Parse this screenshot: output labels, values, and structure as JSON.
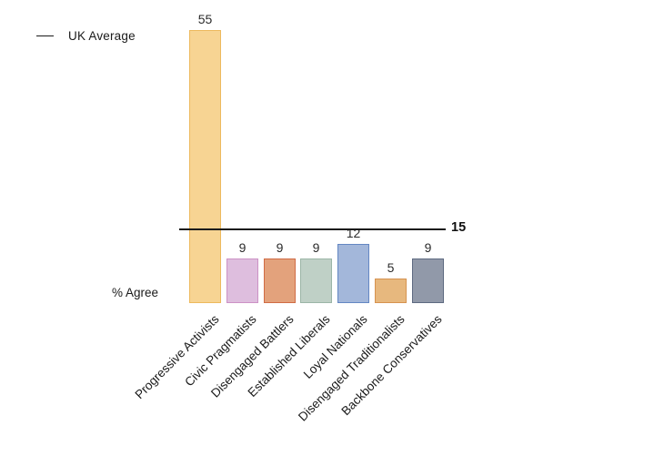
{
  "chart_data": {
    "type": "bar",
    "title": "",
    "categories": [
      "Progressive Activists",
      "Civic Pragmatists",
      "Disengaged Battlers",
      "Established Liberals",
      "Loyal Nationals",
      "Disengaged Traditionalists",
      "Backbone Conservatives"
    ],
    "values": [
      55,
      9,
      9,
      9,
      12,
      5,
      9
    ],
    "ylabel": "% Agree",
    "ylim": [
      0,
      58
    ],
    "grid": false,
    "uk_average": 15,
    "legend_label": "UK Average",
    "legend_position": "top-left",
    "bar_fill_colors": [
      "#F7D493",
      "#DEBEDE",
      "#E3A27C",
      "#BFD0C6",
      "#A3B7DA",
      "#E7B87E",
      "#9199A9"
    ],
    "bar_border_colors": [
      "#EDB95D",
      "#CC92C5",
      "#D06C45",
      "#9CB6A7",
      "#6487C3",
      "#D69350",
      "#5E6A81"
    ],
    "average_line_color": "#1a1a1a",
    "value_label_color": "#2b2b2b"
  }
}
